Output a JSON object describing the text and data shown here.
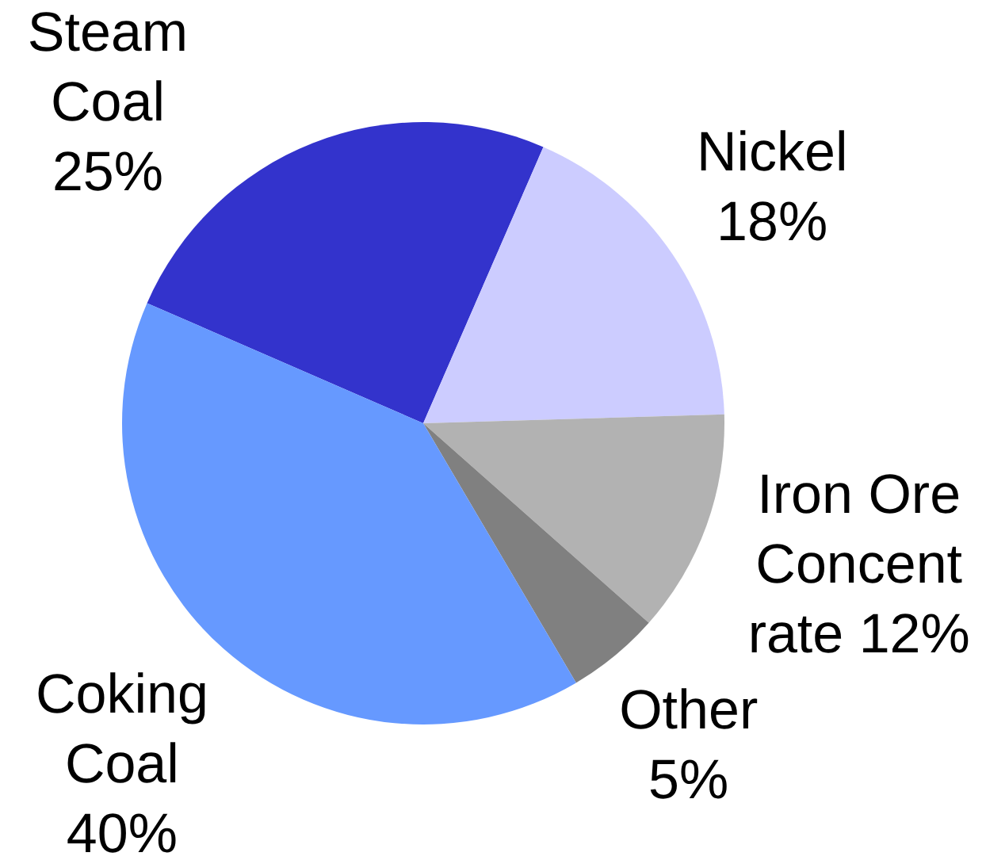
{
  "chart_data": {
    "type": "pie",
    "categories": [
      "Steam Coal",
      "Nickel",
      "Iron Ore Concentrate",
      "Other",
      "Coking Coal"
    ],
    "values": [
      25,
      18,
      12,
      5,
      40
    ],
    "value_labels": [
      "25%",
      "18%",
      "12%",
      "5%",
      "40%"
    ],
    "colors": [
      "#3333cc",
      "#ccccff",
      "#b2b2b2",
      "#808080",
      "#6699ff"
    ]
  }
}
